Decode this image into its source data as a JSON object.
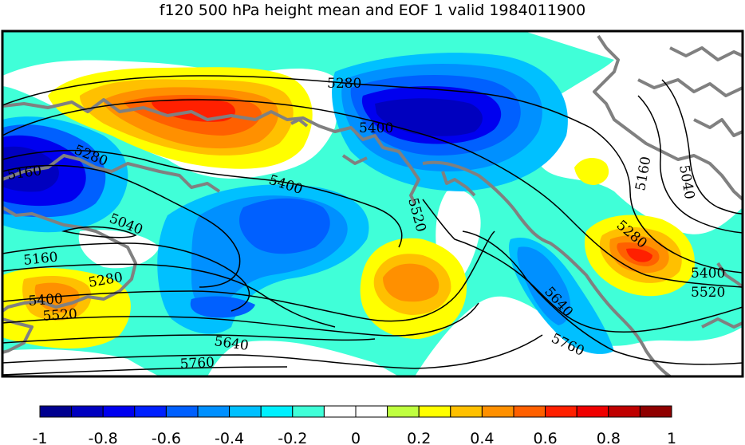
{
  "title": "f120 500 hPa height mean and EOF 1 valid 1984011900",
  "colorbar": {
    "colors": [
      "#00008f",
      "#0000bf",
      "#0000ef",
      "#0020ff",
      "#0060ff",
      "#0090ff",
      "#00c0ff",
      "#00f0ff",
      "#40ffd8",
      "#ffffff",
      "#ffffff",
      "#bfff3f",
      "#ffff00",
      "#ffc000",
      "#ff9000",
      "#ff6000",
      "#ff2000",
      "#ef0000",
      "#bf0000",
      "#8f0000"
    ],
    "tick_labels": [
      "-1",
      "-0.8",
      "-0.6",
      "-0.4",
      "-0.2",
      "0",
      "0.2",
      "0.4",
      "0.6",
      "0.8",
      "1"
    ]
  },
  "contour_labels": [
    {
      "text": "5280"
    },
    {
      "text": "5400"
    },
    {
      "text": "5520"
    },
    {
      "text": "5280"
    },
    {
      "text": "5160"
    },
    {
      "text": "5400"
    },
    {
      "text": "5040"
    },
    {
      "text": "5160"
    },
    {
      "text": "5280"
    },
    {
      "text": "5400"
    },
    {
      "text": "5520"
    },
    {
      "text": "5640"
    },
    {
      "text": "5760"
    },
    {
      "text": "5640"
    },
    {
      "text": "5760"
    },
    {
      "text": "5160"
    },
    {
      "text": "5040"
    },
    {
      "text": "5280"
    },
    {
      "text": "5400"
    },
    {
      "text": "5520"
    }
  ],
  "legend_colors": {
    "land": "#808080",
    "contour": "#000000",
    "frame": "#000000"
  }
}
